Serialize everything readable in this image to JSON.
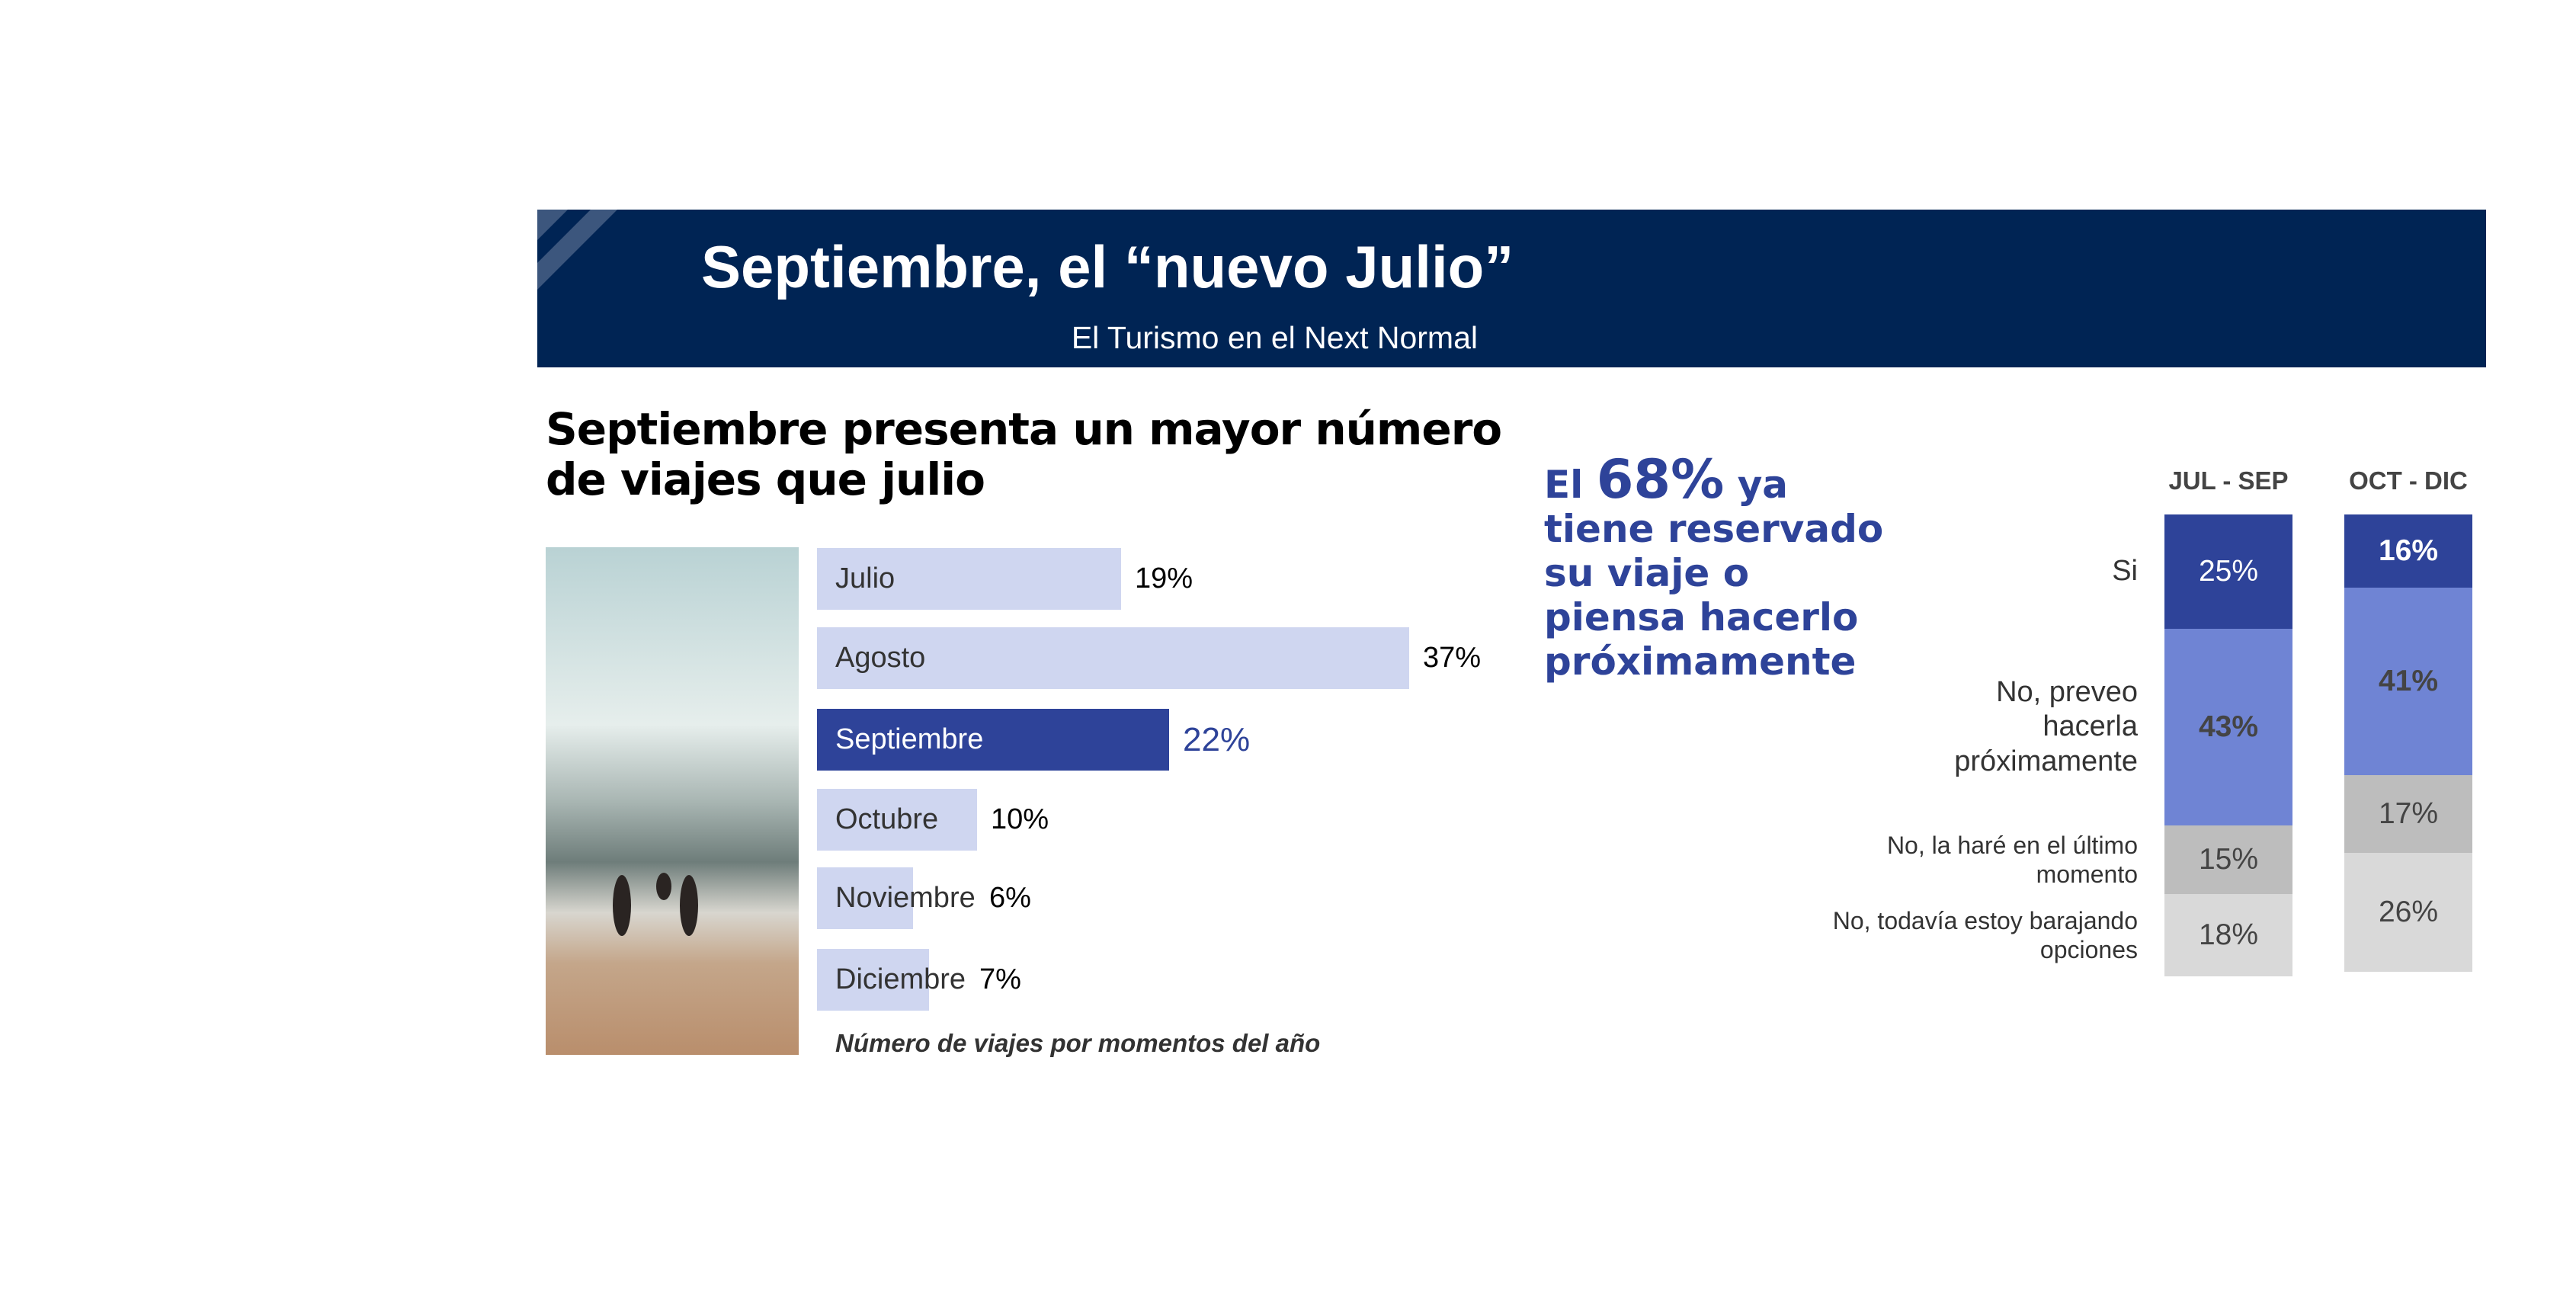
{
  "header": {
    "title": "Septiembre, el “nuevo Julio”",
    "subtitle": "El Turismo en el Next Normal"
  },
  "chart_data": [
    {
      "type": "hbar",
      "title": "Septiembre presenta un mayor número de viajes que julio",
      "caption": "Número de viajes por momentos del año",
      "categories": [
        "Julio",
        "Agosto",
        "Septiembre",
        "Octubre",
        "Noviembre",
        "Diciembre"
      ],
      "values": [
        19,
        37,
        22,
        10,
        6,
        7
      ],
      "value_labels": [
        "19%",
        "37%",
        "22%",
        "10%",
        "6%",
        "7%"
      ],
      "colors": [
        "#cfd6f0",
        "#cfd6f0",
        "#2e4399",
        "#cfd6f0",
        "#cfd6f0",
        "#cfd6f0"
      ]
    },
    {
      "type": "stacked-bar",
      "annotation": {
        "before": "El",
        "highlight": "68%",
        "after": "ya tiene reservado su viaje o piensa hacerlo próximamente"
      },
      "categories": [
        "JUL - SEP",
        "OCT - DIC"
      ],
      "series": [
        {
          "name": "Si",
          "color": "#2e4399",
          "values": [
            25,
            16
          ],
          "value_labels": [
            "25%",
            "16%"
          ]
        },
        {
          "name": "No, preveo hacerla próximamente",
          "color": "#6f84d4",
          "values": [
            43,
            41
          ],
          "value_labels": [
            "43%",
            "41%"
          ]
        },
        {
          "name": "No, la haré en el último momento",
          "color": "#bdbdbd",
          "values": [
            15,
            17
          ],
          "value_labels": [
            "15%",
            "17%"
          ]
        },
        {
          "name": "No, todavía estoy barajando opciones",
          "color": "#d9d9d9",
          "values": [
            18,
            26
          ],
          "value_labels": [
            "18%",
            "26%"
          ]
        }
      ]
    }
  ]
}
